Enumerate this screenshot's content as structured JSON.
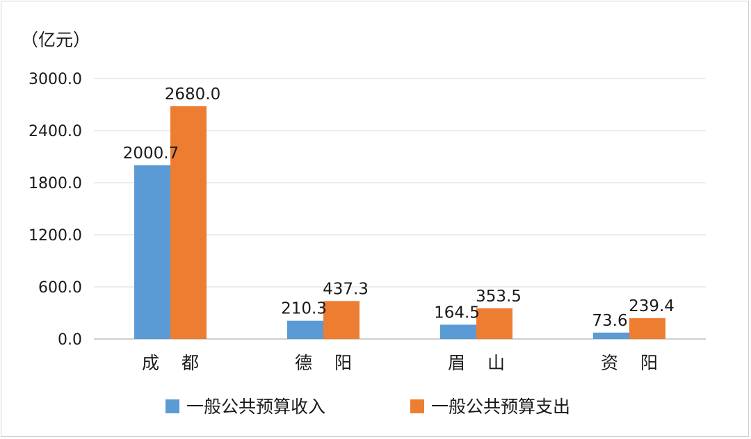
{
  "chart_data": {
    "type": "bar",
    "unit_label": "（亿元）",
    "categories": [
      "成 都",
      "德 阳",
      "眉 山",
      "资 阳"
    ],
    "series": [
      {
        "name": "一般公共预算收入",
        "values": [
          2000.7,
          210.3,
          164.5,
          73.6
        ],
        "color": "#5b9bd5"
      },
      {
        "name": "一般公共预算支出",
        "values": [
          2680.0,
          437.3,
          353.5,
          239.4
        ],
        "color": "#ed7d31"
      }
    ],
    "value_labels": [
      [
        "2000.7",
        "210.3",
        "164.5",
        "73.6"
      ],
      [
        "2680.0",
        "437.3",
        "353.5",
        "239.4"
      ]
    ],
    "y_ticks": [
      "0.0",
      "600.0",
      "1200.0",
      "1800.0",
      "2400.0",
      "3000.0"
    ],
    "ylim": [
      0,
      3000
    ],
    "grid": true,
    "legend_position": "bottom"
  }
}
